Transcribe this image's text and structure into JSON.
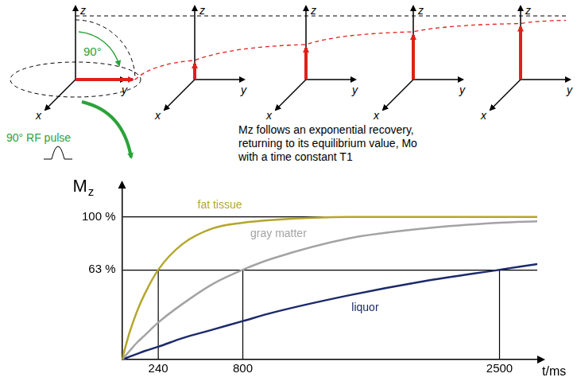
{
  "diagram": {
    "axis_labels": {
      "x": "x",
      "y": "y",
      "z": "z"
    },
    "flip_angle_label": "90°",
    "pulse_label": "90° RF pulse",
    "caption": [
      "Mz follows an exponential recovery,",
      "returning to its equilibrium value, Mo",
      "with a time constant T1"
    ],
    "mz_fraction": [
      0,
      0.3,
      0.55,
      0.75,
      0.88
    ]
  },
  "chart_data": {
    "type": "line",
    "x_label": "t/ms",
    "y_label": "Mz",
    "x": [
      0,
      50,
      100,
      150,
      240,
      400,
      600,
      800,
      1000,
      1500,
      2000,
      2500,
      2750
    ],
    "series": [
      {
        "name": "fat tissue",
        "color": "#b3a62c",
        "values": [
          0,
          19,
          34,
          46,
          63,
          81,
          92,
          96,
          98,
          100,
          100,
          100,
          100
        ],
        "t1": 240
      },
      {
        "name": "gray matter",
        "color": "#a3a3a3",
        "values": [
          0,
          6,
          12,
          17,
          26,
          39,
          53,
          63,
          71,
          85,
          92,
          96,
          97
        ],
        "t1": 800
      },
      {
        "name": "liquor",
        "color": "#1c2a6b",
        "values": [
          0,
          2,
          4,
          6,
          9,
          15,
          21,
          27,
          33,
          45,
          55,
          63,
          67
        ],
        "t1": 2500
      }
    ],
    "t1_level": 63,
    "xlim": [
      0,
      2750
    ],
    "ylim": [
      0,
      120
    ],
    "xticks": [
      240,
      800,
      2500
    ],
    "yticks": [
      {
        "value": 63,
        "label": "63 %"
      },
      {
        "value": 100,
        "label": "100 %"
      }
    ],
    "grid": "y"
  }
}
